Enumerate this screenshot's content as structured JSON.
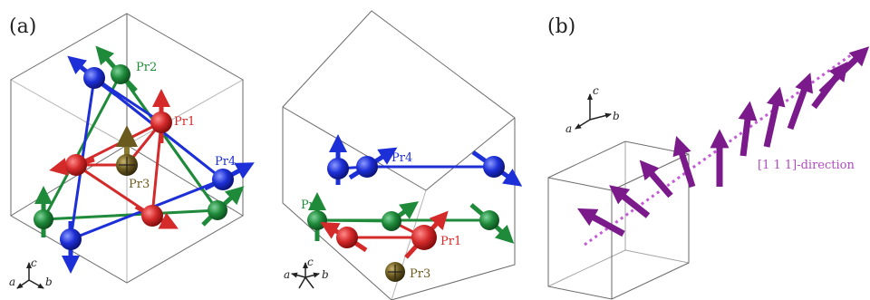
{
  "panel_labels": {
    "a": "(a)",
    "b": "(b)"
  },
  "atom_labels": {
    "pr1": "Pr1",
    "pr2": "Pr2",
    "pr3": "Pr3",
    "pr4": "Pr4"
  },
  "axes_labels": {
    "a": "a",
    "b": "b",
    "c": "c"
  },
  "direction_label": "[1 1 1]-direction",
  "colors": {
    "pr1": "#d42a2a",
    "pr2": "#1f8a3a",
    "pr3": "#6b5a1e",
    "pr4": "#1d2fd6",
    "spiral": "#7b1a8a",
    "direction": "#c45bd6",
    "box": "#6a6a6a"
  }
}
